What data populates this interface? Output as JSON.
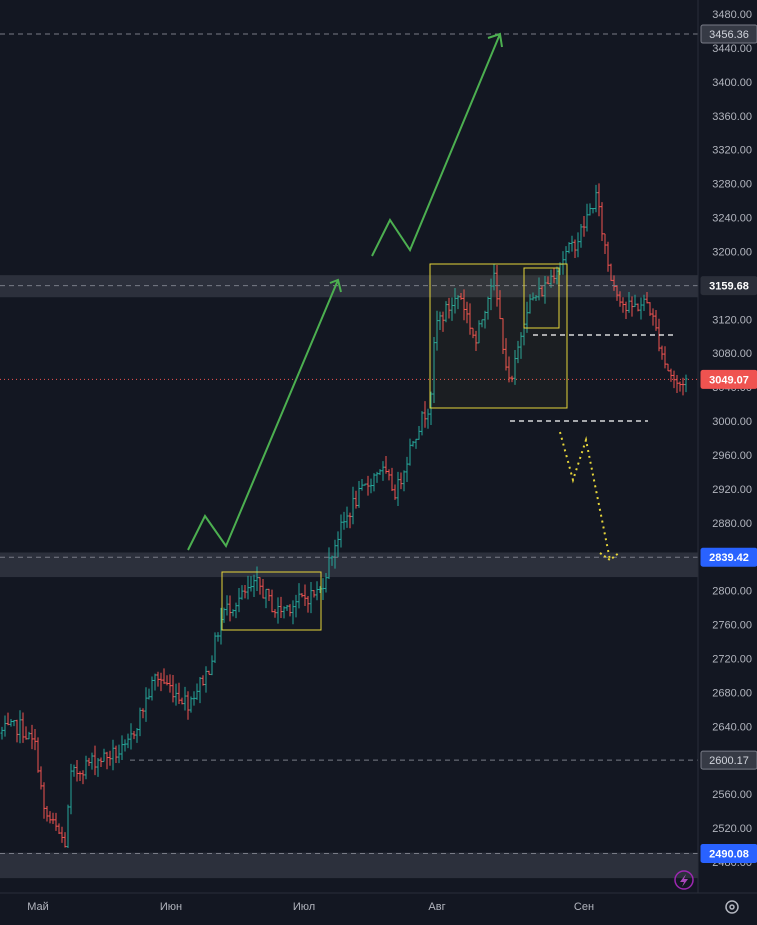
{
  "chart_data": {
    "type": "candlestick",
    "y_axis": {
      "ticks": [
        2480,
        2520,
        2560,
        2600,
        2640,
        2680,
        2720,
        2760,
        2800,
        2840,
        2880,
        2920,
        2960,
        3000,
        3040,
        3080,
        3120,
        3160,
        3200,
        3240,
        3280,
        3320,
        3360,
        3400,
        3440,
        3480
      ],
      "tick_labels": [
        "2480.00",
        "2520.00",
        "2560.00",
        "2600.00",
        "2640.00",
        "2680.00",
        "2720.00",
        "2760.00",
        "2800.00",
        "2840.00",
        "2880.00",
        "2920.00",
        "2960.00",
        "3000.00",
        "3040.00",
        "3080.00",
        "3120.00",
        "3160.00",
        "3200.00",
        "3240.00",
        "3280.00",
        "3320.00",
        "3360.00",
        "3400.00",
        "3440.00",
        "3480.00"
      ],
      "range": [
        2471,
        3490
      ],
      "position": "right"
    },
    "x_axis": {
      "labels": [
        "Май",
        "Июн",
        "Июл",
        "Авг",
        "Сен"
      ]
    },
    "price_labels": [
      {
        "value": 3456.36,
        "text": "3456.36",
        "style": "gray"
      },
      {
        "value": 3159.68,
        "text": "3159.68",
        "style": "dark"
      },
      {
        "value": 3049.07,
        "text": "3049.07",
        "style": "red"
      },
      {
        "value": 2839.42,
        "text": "2839.42",
        "style": "blue"
      },
      {
        "value": 2600.17,
        "text": "2600.17",
        "style": "gray"
      },
      {
        "value": 2490.08,
        "text": "2490.08",
        "style": "blue"
      }
    ],
    "zones": [
      {
        "from": 3146,
        "to": 3172
      },
      {
        "from": 2816,
        "to": 2845
      },
      {
        "from": 2461,
        "to": 2491
      }
    ],
    "key_points": [
      {
        "period": "Май",
        "price": 2490
      },
      {
        "period": "Июн",
        "price": 2752
      },
      {
        "period": "Июл",
        "price": 2839
      },
      {
        "period": "Авг",
        "price": 3020
      },
      {
        "period": "Авг",
        "price": 3185
      },
      {
        "period": "Сен",
        "price": 3270
      },
      {
        "period": "Сен",
        "price": 3049
      }
    ],
    "last_price": 3049.07,
    "colors": {
      "up": "#26a69a",
      "down": "#ef5350",
      "projection_up": "#4caf50",
      "projection_down": "#e6d53a",
      "box": "#e6d53a"
    }
  },
  "icons": [
    "lightning-icon",
    "settings-icon"
  ]
}
